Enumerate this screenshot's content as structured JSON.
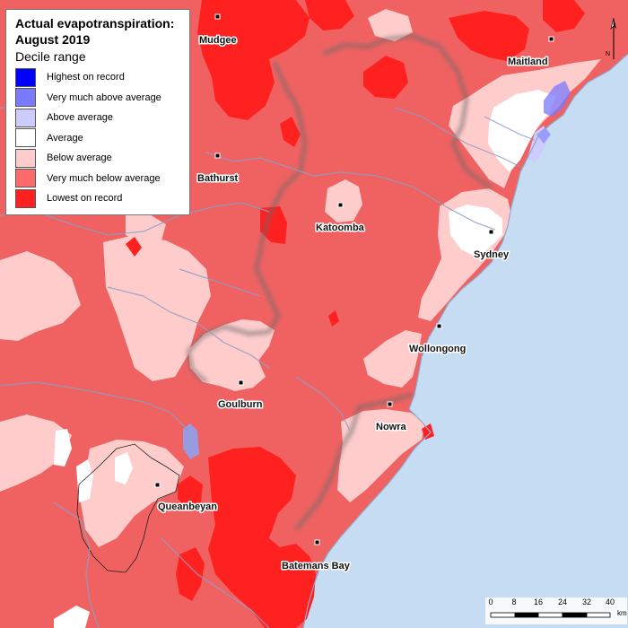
{
  "legend": {
    "title_line1": "Actual evapotranspiration:",
    "title_line2": "August 2019",
    "subtitle": "Decile range",
    "items": [
      {
        "label": "Highest on record",
        "color": "#0000ff"
      },
      {
        "label": "Very much above average",
        "color": "#7a7aff"
      },
      {
        "label": "Above average",
        "color": "#ccccff"
      },
      {
        "label": "Average",
        "color": "#ffffff"
      },
      {
        "label": "Below average",
        "color": "#ffcccc"
      },
      {
        "label": "Very much below average",
        "color": "#ff6a6a"
      },
      {
        "label": "Lowest on record",
        "color": "#ff2020"
      }
    ]
  },
  "towns": [
    {
      "name": "Mudgee"
    },
    {
      "name": "Maitland"
    },
    {
      "name": "Bathurst"
    },
    {
      "name": "Katoomba"
    },
    {
      "name": "Sydney"
    },
    {
      "name": "Wollongong"
    },
    {
      "name": "Goulburn"
    },
    {
      "name": "Nowra"
    },
    {
      "name": "Queanbeyan"
    },
    {
      "name": "Batemans Bay"
    }
  ],
  "scale": {
    "ticks": [
      "0",
      "8",
      "16",
      "24",
      "32",
      "40"
    ],
    "unit": "km"
  },
  "north_label": "N",
  "colors": {
    "ocean": "#c6dcf2",
    "land_default": "#f06262",
    "river": "#8a9ec8",
    "boundary": "#7a7a7a"
  }
}
